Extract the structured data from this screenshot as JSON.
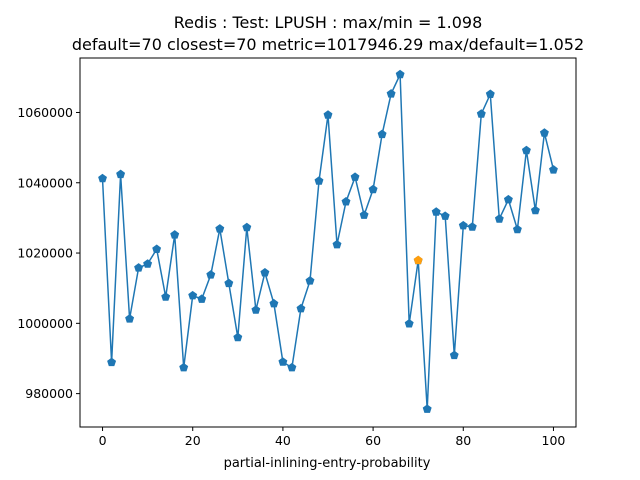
{
  "chart_data": {
    "type": "line",
    "title_line1": "Redis : Test: LPUSH : max/min = 1.098",
    "title_line2": "default=70 closest=70 metric=1017946.29 max/default=1.052",
    "xlabel": "partial-inlining-entry-probability",
    "ylabel": "",
    "xlim": [
      -5,
      105
    ],
    "ylim": [
      970500,
      1075500
    ],
    "xticks": [
      0,
      20,
      40,
      60,
      80,
      100
    ],
    "xtick_labels": [
      "0",
      "20",
      "40",
      "60",
      "80",
      "100"
    ],
    "yticks": [
      980000,
      1000000,
      1020000,
      1040000,
      1060000
    ],
    "ytick_labels": [
      "980000",
      "1000000",
      "1020000",
      "1040000",
      "1060000"
    ],
    "grid": false,
    "series": [
      {
        "color": "#1f77b4",
        "marker": "pentagon",
        "x": [
          0,
          2,
          4,
          6,
          8,
          10,
          12,
          14,
          16,
          18,
          20,
          22,
          24,
          26,
          28,
          30,
          32,
          34,
          36,
          38,
          40,
          42,
          44,
          46,
          48,
          50,
          52,
          54,
          56,
          58,
          60,
          62,
          64,
          66,
          68,
          70,
          72,
          74,
          76,
          78,
          80,
          82,
          84,
          86,
          88,
          90,
          92,
          94,
          96,
          98,
          100
        ],
        "y": [
          1041200,
          988900,
          1042400,
          1001300,
          1015800,
          1016900,
          1021100,
          1007500,
          1025200,
          987400,
          1007900,
          1006900,
          1013800,
          1026900,
          1011400,
          996000,
          1027300,
          1003800,
          1014400,
          1005600,
          989000,
          987400,
          1004200,
          1012100,
          1040500,
          1059300,
          1022400,
          1034600,
          1041600,
          1030800,
          1038100,
          1053800,
          1065300,
          1070800,
          999900,
          1017900,
          975600,
          1031700,
          1030500,
          990900,
          1027800,
          1027400,
          1059600,
          1065200,
          1029700,
          1035200,
          1026700,
          1049200,
          1032100,
          1054200,
          1043700
        ]
      }
    ],
    "highlight": {
      "x": 70,
      "y": 1017946.29,
      "color": "#ff9f0e"
    }
  }
}
